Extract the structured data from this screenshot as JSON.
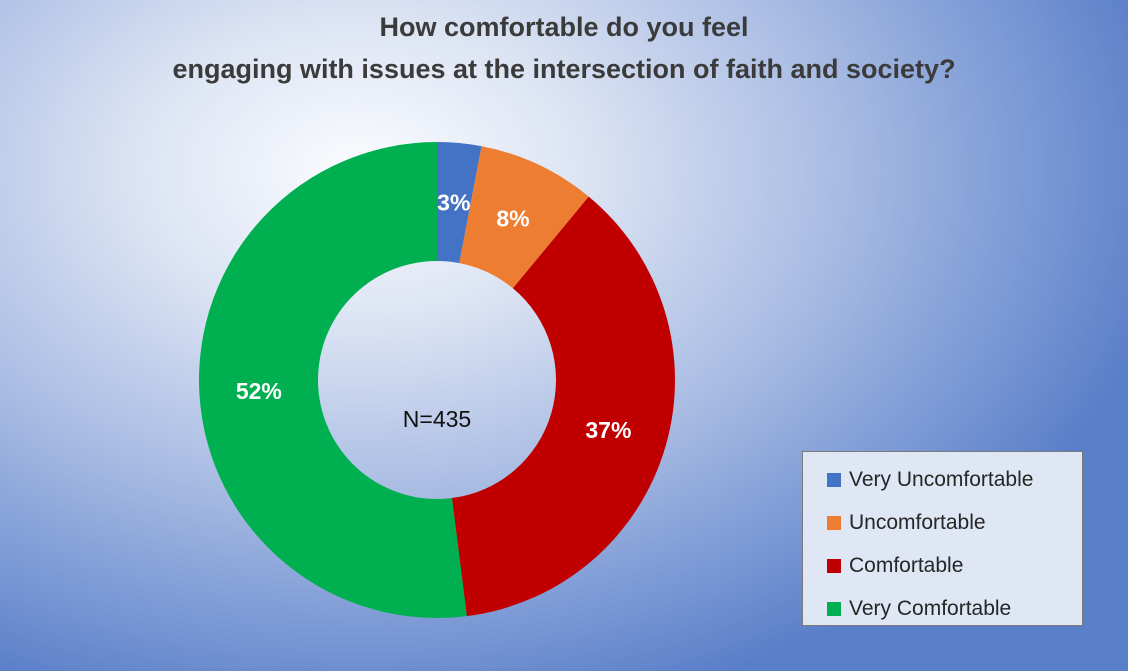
{
  "chart_data": {
    "type": "pie",
    "variant": "donut",
    "title": "How comfortable do you feel",
    "title_line2": "engaging with issues at the intersection of faith and society?",
    "center_label": "N=435",
    "categories": [
      "Very Uncomfortable",
      "Uncomfortable",
      "Comfortable",
      "Very Comfortable"
    ],
    "values": [
      3,
      8,
      37,
      52
    ],
    "data_labels": [
      "3%",
      "8%",
      "37%",
      "52%"
    ],
    "colors": [
      "#4472c4",
      "#ed7d31",
      "#c00000",
      "#00b050"
    ],
    "legend_position": "bottom-right"
  }
}
